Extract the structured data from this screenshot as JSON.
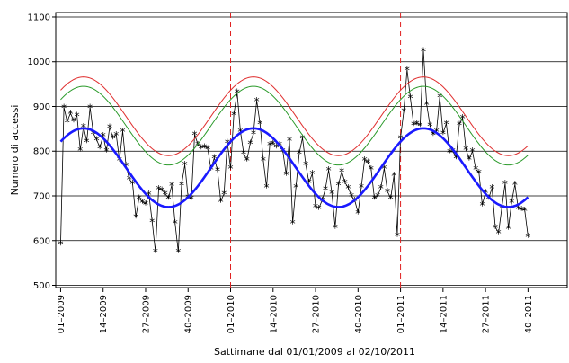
{
  "chart_data": {
    "type": "line",
    "xlabel": "Sattimane dal 01/01/2009 al 02/10/2011",
    "ylabel": "Numero di accessi",
    "ylim": [
      495,
      1110
    ],
    "yticks": [
      500,
      600,
      700,
      800,
      900,
      1000,
      1100
    ],
    "grid": "horizontal",
    "x_tick_labels": [
      "01–2009",
      "14–2009",
      "27–2009",
      "40–2009",
      "01–2010",
      "14–2010",
      "27–2010",
      "40–2010",
      "01–2011",
      "14–2011",
      "27–2011",
      "40–2011"
    ],
    "x_tick_positions": [
      1,
      14,
      27,
      40,
      53,
      66,
      79,
      92,
      105,
      118,
      131,
      144
    ],
    "xlim": [
      -0.5,
      156
    ],
    "vertical_markers": [
      53,
      105
    ],
    "series": [
      {
        "style": "observed",
        "color": "#000000",
        "marker": "*",
        "points": [
          [
            1,
            592
          ],
          [
            2,
            898
          ],
          [
            3,
            866
          ],
          [
            4,
            885
          ],
          [
            5,
            868
          ],
          [
            6,
            880
          ],
          [
            7,
            803
          ],
          [
            8,
            855
          ],
          [
            9,
            822
          ],
          [
            10,
            898
          ],
          [
            11,
            840
          ],
          [
            12,
            826
          ],
          [
            13,
            808
          ],
          [
            14,
            835
          ],
          [
            15,
            800
          ],
          [
            16,
            854
          ],
          [
            17,
            830
          ],
          [
            18,
            837
          ],
          [
            19,
            780
          ],
          [
            20,
            845
          ],
          [
            21,
            768
          ],
          [
            22,
            738
          ],
          [
            23,
            728
          ],
          [
            24,
            653
          ],
          [
            25,
            695
          ],
          [
            26,
            686
          ],
          [
            27,
            682
          ],
          [
            28,
            704
          ],
          [
            29,
            643
          ],
          [
            30,
            575
          ],
          [
            31,
            716
          ],
          [
            32,
            713
          ],
          [
            33,
            705
          ],
          [
            34,
            695
          ],
          [
            35,
            724
          ],
          [
            36,
            640
          ],
          [
            37,
            575
          ],
          [
            38,
            725
          ],
          [
            39,
            770
          ],
          [
            40,
            697
          ],
          [
            41,
            694
          ],
          [
            42,
            838
          ],
          [
            43,
            815
          ],
          [
            44,
            808
          ],
          [
            45,
            810
          ],
          [
            46,
            806
          ],
          [
            47,
            760
          ],
          [
            48,
            785
          ],
          [
            49,
            757
          ],
          [
            50,
            688
          ],
          [
            51,
            705
          ],
          [
            52,
            820
          ],
          [
            53,
            762
          ],
          [
            54,
            882
          ],
          [
            55,
            932
          ],
          [
            56,
            845
          ],
          [
            57,
            795
          ],
          [
            58,
            780
          ],
          [
            59,
            818
          ],
          [
            60,
            840
          ],
          [
            61,
            913
          ],
          [
            62,
            862
          ],
          [
            63,
            780
          ],
          [
            64,
            720
          ],
          [
            65,
            815
          ],
          [
            66,
            818
          ],
          [
            67,
            810
          ],
          [
            68,
            815
          ],
          [
            69,
            800
          ],
          [
            70,
            748
          ],
          [
            71,
            825
          ],
          [
            72,
            640
          ],
          [
            73,
            720
          ],
          [
            74,
            795
          ],
          [
            75,
            830
          ],
          [
            76,
            770
          ],
          [
            77,
            730
          ],
          [
            78,
            750
          ],
          [
            79,
            676
          ],
          [
            80,
            672
          ],
          [
            81,
            690
          ],
          [
            82,
            715
          ],
          [
            83,
            758
          ],
          [
            84,
            706
          ],
          [
            85,
            630
          ],
          [
            86,
            725
          ],
          [
            87,
            755
          ],
          [
            88,
            730
          ],
          [
            89,
            718
          ],
          [
            90,
            700
          ],
          [
            91,
            690
          ],
          [
            92,
            662
          ],
          [
            93,
            720
          ],
          [
            94,
            780
          ],
          [
            95,
            775
          ],
          [
            96,
            760
          ],
          [
            97,
            695
          ],
          [
            98,
            700
          ],
          [
            99,
            718
          ],
          [
            100,
            762
          ],
          [
            101,
            710
          ],
          [
            102,
            695
          ],
          [
            103,
            746
          ],
          [
            104,
            612
          ],
          [
            105,
            830
          ],
          [
            106,
            890
          ],
          [
            107,
            982
          ],
          [
            108,
            920
          ],
          [
            109,
            860
          ],
          [
            110,
            862
          ],
          [
            111,
            858
          ],
          [
            112,
            1025
          ],
          [
            113,
            905
          ],
          [
            114,
            858
          ],
          [
            115,
            838
          ],
          [
            116,
            845
          ],
          [
            117,
            922
          ],
          [
            118,
            840
          ],
          [
            119,
            862
          ],
          [
            120,
            798
          ],
          [
            121,
            800
          ],
          [
            122,
            785
          ],
          [
            123,
            860
          ],
          [
            124,
            875
          ],
          [
            125,
            805
          ],
          [
            126,
            782
          ],
          [
            127,
            800
          ],
          [
            128,
            760
          ],
          [
            129,
            752
          ],
          [
            130,
            680
          ],
          [
            131,
            708
          ],
          [
            132,
            695
          ],
          [
            133,
            718
          ],
          [
            134,
            630
          ],
          [
            135,
            618
          ],
          [
            136,
            674
          ],
          [
            137,
            728
          ],
          [
            138,
            628
          ],
          [
            139,
            686
          ],
          [
            140,
            726
          ],
          [
            141,
            672
          ],
          [
            142,
            670
          ],
          [
            143,
            668
          ],
          [
            144,
            610
          ]
        ]
      },
      {
        "style": "smoothed",
        "color": "#1a1aff",
        "amplitude": 88,
        "mean": 763,
        "period": 52,
        "peak_week": 8,
        "x_range": [
          1,
          144
        ]
      },
      {
        "style": "upper_band_red",
        "color": "#e03030",
        "amplitude": 88,
        "mean": 878,
        "period": 52,
        "peak_week": 8,
        "x_range": [
          1,
          144
        ]
      },
      {
        "style": "upper_band_green",
        "color": "#2a9a2a",
        "amplitude": 88,
        "mean": 857,
        "period": 52,
        "peak_week": 8,
        "x_range": [
          1,
          144
        ]
      }
    ]
  }
}
